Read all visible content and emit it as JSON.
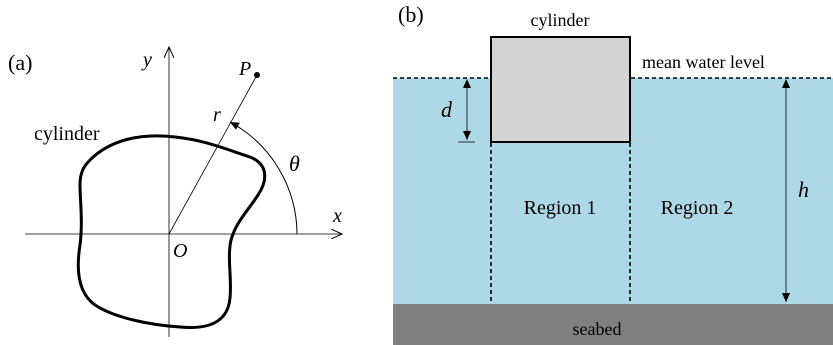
{
  "panel_a": {
    "label": "(a)",
    "cylinder_label": "cylinder",
    "axis_x": "x",
    "axis_y": "y",
    "origin": "O",
    "point": "P",
    "radius": "r",
    "angle": "θ"
  },
  "panel_b": {
    "label": "(b)",
    "cylinder_label": "cylinder",
    "water_level_label": "mean water level",
    "draft": "d",
    "depth": "h",
    "region1": "Region 1",
    "region2": "Region 2",
    "seabed_label": "seabed"
  },
  "colors": {
    "water": "#add8e6",
    "cylinder_fill": "#d3d3d3",
    "seabed": "#808080",
    "line": "#000000"
  }
}
